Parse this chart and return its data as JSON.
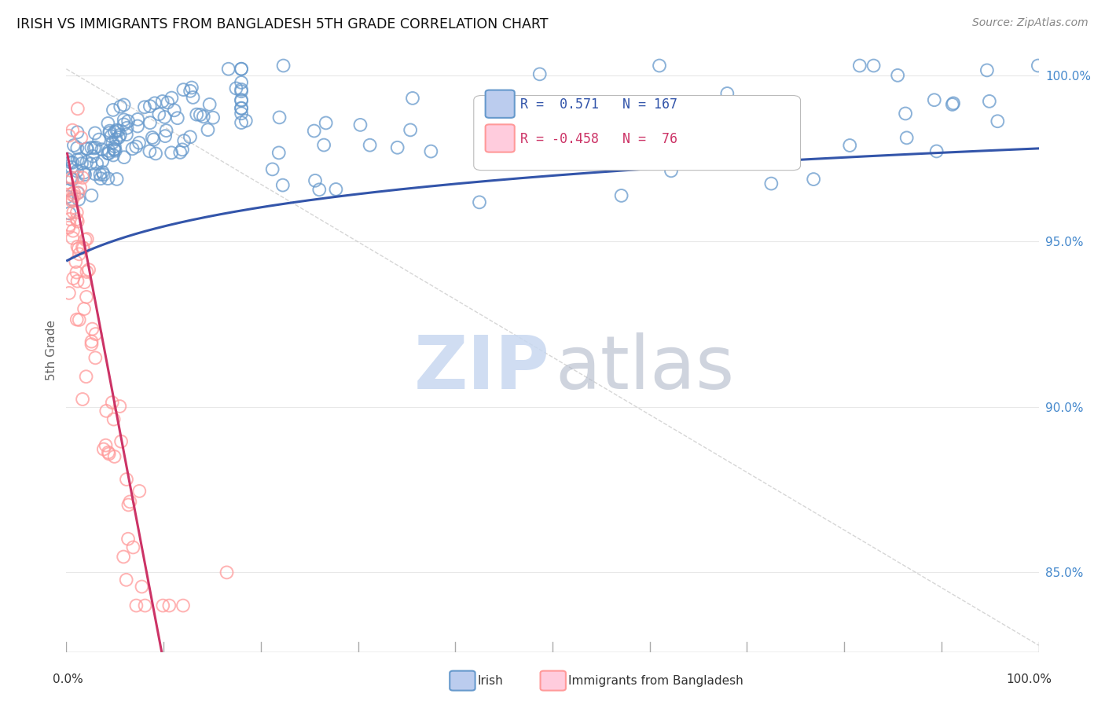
{
  "title": "IRISH VS IMMIGRANTS FROM BANGLADESH 5TH GRADE CORRELATION CHART",
  "source": "Source: ZipAtlas.com",
  "ylabel": "5th Grade",
  "r_irish": 0.571,
  "n_irish": 167,
  "r_bangladesh": -0.458,
  "n_bangladesh": 76,
  "blue_color": "#6699CC",
  "pink_color": "#FF9999",
  "trend_blue": "#3355AA",
  "trend_pink": "#CC3366",
  "watermark_zip": "#C8D8F0",
  "watermark_atlas": "#B0B8C8",
  "background_color": "#FFFFFF",
  "grid_color": "#E8E8E8",
  "figsize": [
    14.06,
    8.92
  ],
  "dpi": 100
}
